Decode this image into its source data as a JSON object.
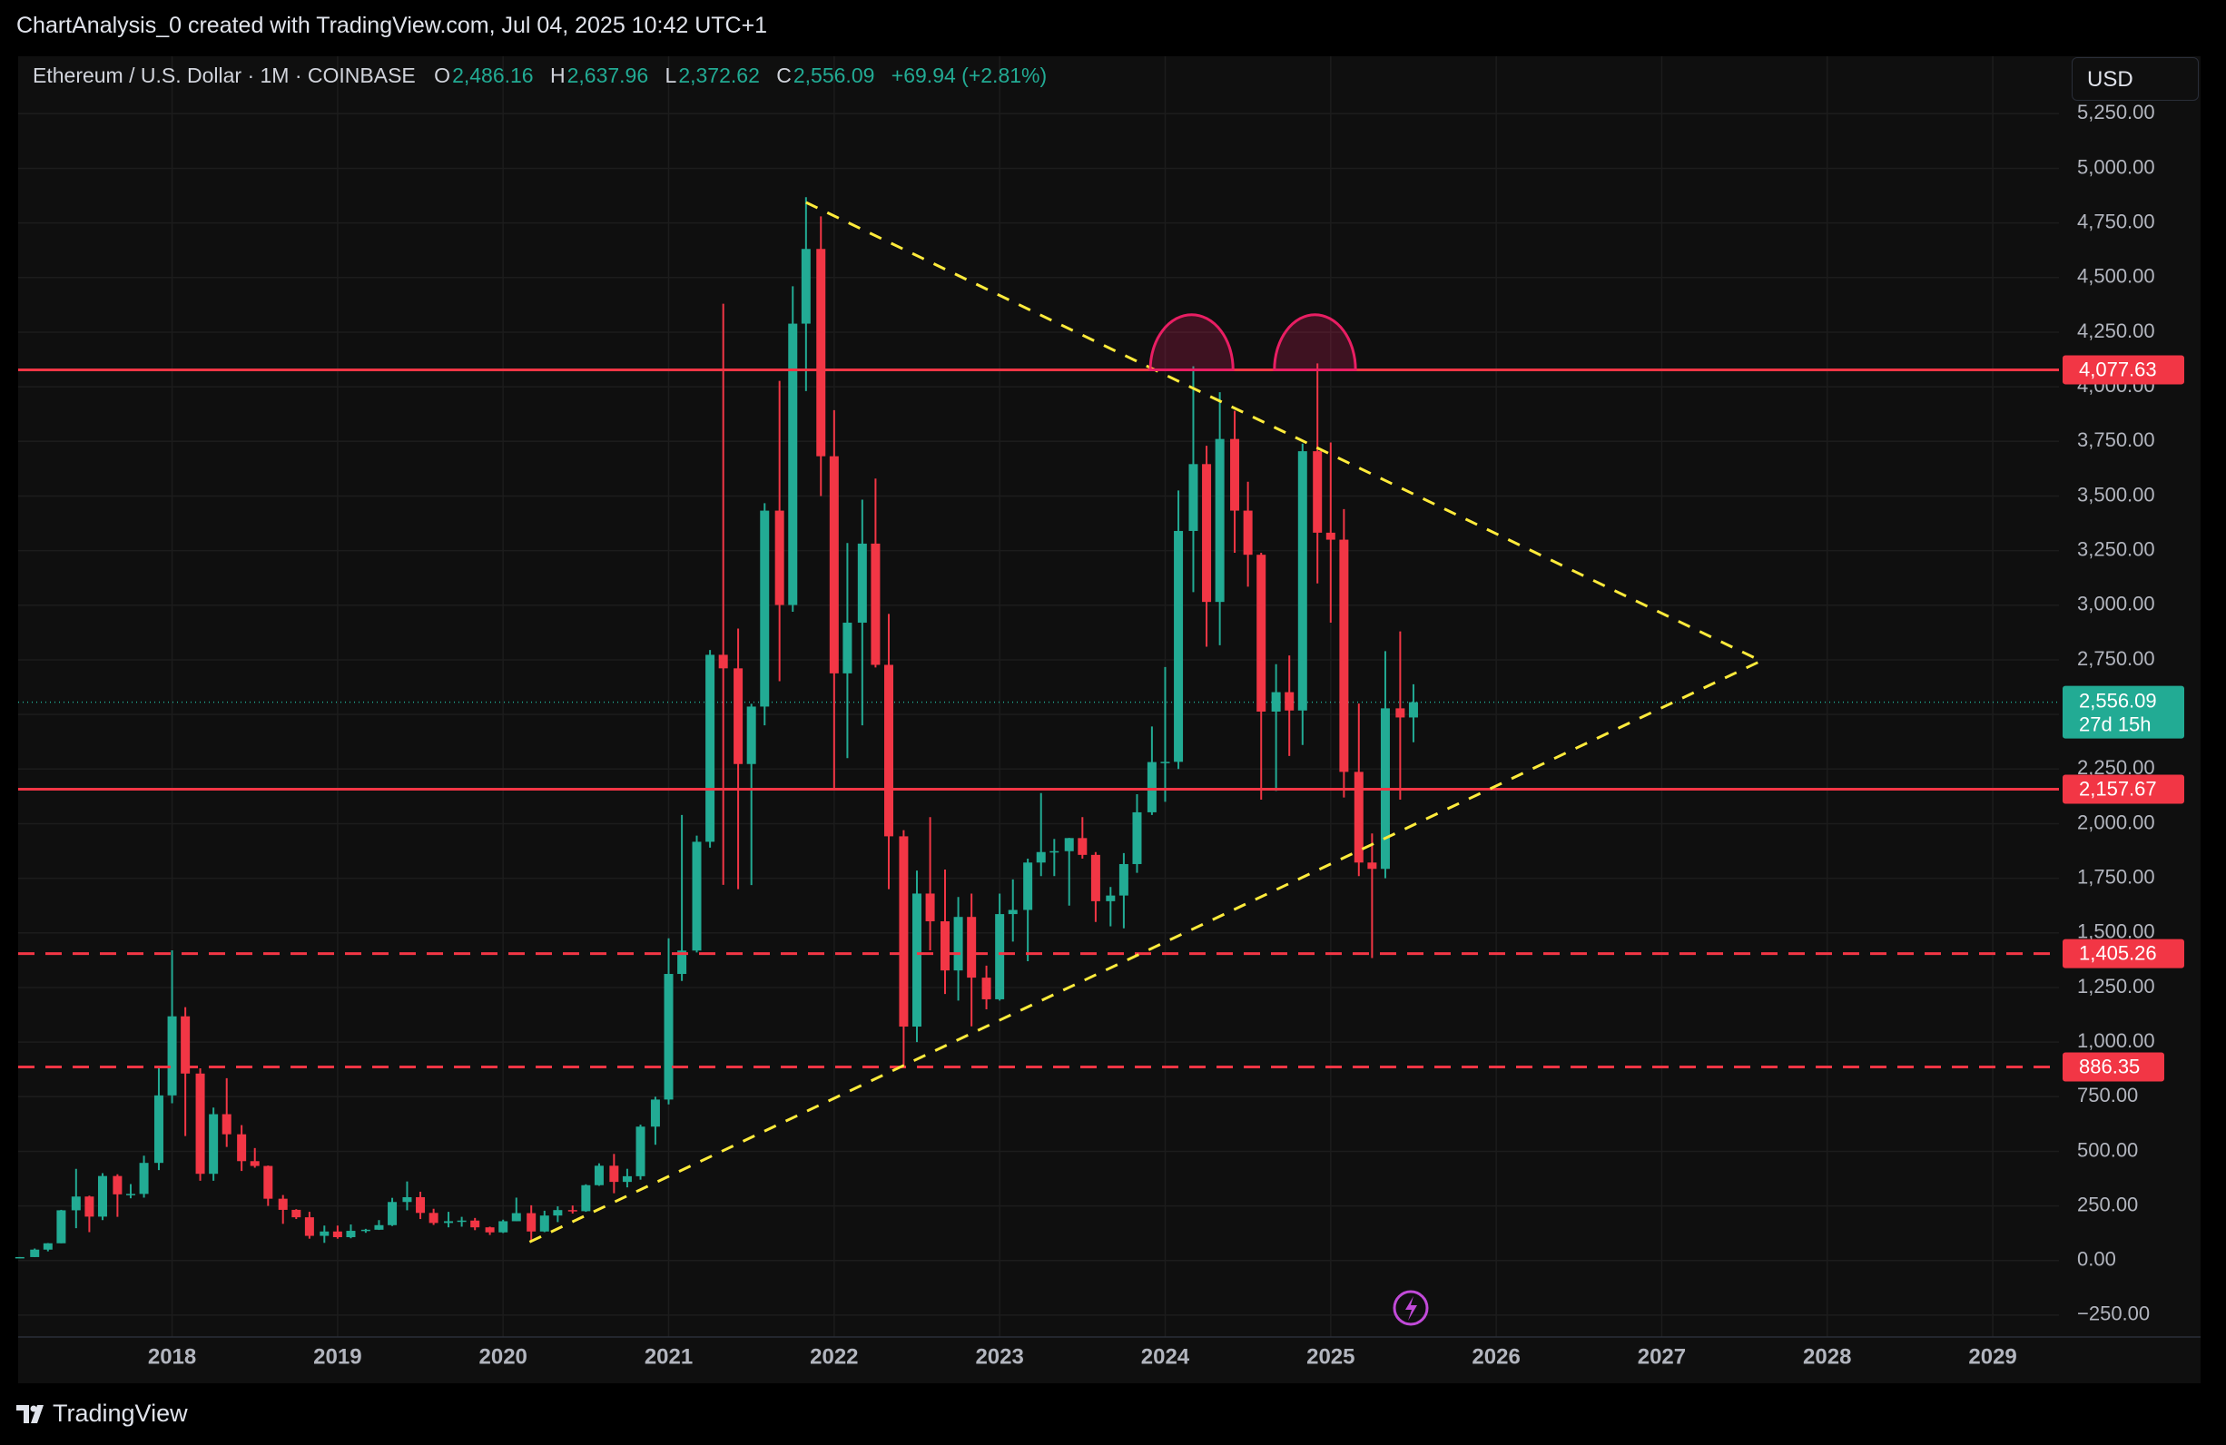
{
  "page": {
    "attribution": "ChartAnalysis_0 created with TradingView.com, Jul 04, 2025 10:42 UTC+1",
    "symbol": "Ethereum / U.S. Dollar · 1M · COINBASE",
    "ohlc": [
      [
        "O",
        "2,486.16"
      ],
      [
        "H",
        "2,637.96"
      ],
      [
        "L",
        "2,372.62"
      ],
      [
        "C",
        "2,556.09"
      ]
    ],
    "change": "+69.94 (+2.81%)",
    "currency": "USD",
    "brand": "TradingView"
  },
  "chart_data": {
    "type": "candlestick",
    "up_color": "#22ab94",
    "down_color": "#f23645",
    "x": [
      2017.08,
      2017.17,
      2017.25,
      2017.33,
      2017.42,
      2017.5,
      2017.58,
      2017.67,
      2017.75,
      2017.83,
      2017.92,
      2018,
      2018.08,
      2018.17,
      2018.25,
      2018.33,
      2018.42,
      2018.5,
      2018.58,
      2018.67,
      2018.75,
      2018.83,
      2018.92,
      2019,
      2019.08,
      2019.17,
      2019.25,
      2019.33,
      2019.42,
      2019.5,
      2019.58,
      2019.67,
      2019.75,
      2019.83,
      2019.92,
      2020,
      2020.08,
      2020.17,
      2020.25,
      2020.33,
      2020.42,
      2020.5,
      2020.58,
      2020.67,
      2020.75,
      2020.83,
      2020.92,
      2021,
      2021.08,
      2021.17,
      2021.25,
      2021.33,
      2021.42,
      2021.5,
      2021.58,
      2021.67,
      2021.75,
      2021.83,
      2021.92,
      2022,
      2022.08,
      2022.17,
      2022.25,
      2022.33,
      2022.42,
      2022.5,
      2022.58,
      2022.67,
      2022.75,
      2022.83,
      2022.92,
      2023,
      2023.08,
      2023.17,
      2023.25,
      2023.33,
      2023.42,
      2023.5,
      2023.58,
      2023.67,
      2023.75,
      2023.83,
      2023.92,
      2024,
      2024.08,
      2024.17,
      2024.25,
      2024.33,
      2024.42,
      2024.5,
      2024.58,
      2024.67,
      2024.75,
      2024.83,
      2024.92,
      2025,
      2025.08,
      2025.17,
      2025.25,
      2025.33,
      2025.42,
      2025.5
    ],
    "open": [
      10.7,
      15.9,
      50,
      79,
      230,
      293,
      201,
      387,
      303,
      305,
      447,
      756,
      1118,
      856,
      397,
      670,
      578,
      455,
      433,
      283,
      232,
      198,
      113,
      133,
      107,
      136,
      141,
      162,
      268,
      290,
      218,
      172,
      180,
      183,
      152,
      129,
      180,
      217,
      133,
      206,
      231,
      226,
      345,
      434,
      360,
      386,
      613,
      737,
      1312,
      1419,
      1917,
      2773,
      2711,
      2273,
      2536,
      3433,
      3001,
      4289,
      4631,
      3682,
      2688,
      2920,
      3282,
      2727,
      1942,
      1071,
      1680,
      1553,
      1328,
      1573,
      1295,
      1196,
      1586,
      1605,
      1822,
      1870,
      1874,
      1934,
      1857,
      1645,
      1671,
      1815,
      2052,
      2282,
      2283,
      3340,
      3646,
      3015,
      3761,
      3433,
      3231,
      2513,
      2602,
      2518,
      3705,
      3332,
      3300,
      2237,
      1822,
      1793,
      2528,
      2486.16
    ],
    "high": [
      16,
      55,
      80,
      232,
      420,
      297,
      400,
      395,
      350,
      480,
      880,
      1420,
      1160,
      880,
      700,
      835,
      620,
      515,
      435,
      300,
      235,
      223,
      160,
      160,
      165,
      145,
      185,
      287,
      362,
      315,
      237,
      223,
      200,
      195,
      155,
      187,
      288,
      253,
      228,
      248,
      252,
      349,
      445,
      488,
      420,
      622,
      750,
      1475,
      2040,
      1945,
      2795,
      4380,
      2893,
      2549,
      3467,
      4027,
      4460,
      4868,
      4780,
      3893,
      3285,
      3483,
      3580,
      2960,
      1970,
      1785,
      2030,
      1790,
      1664,
      1680,
      1350,
      1680,
      1745,
      1840,
      2140,
      1930,
      1935,
      2030,
      1870,
      1710,
      1865,
      2135,
      2445,
      2717,
      3525,
      4094,
      3730,
      3975,
      3890,
      3565,
      3240,
      2730,
      2770,
      3740,
      4107,
      3745,
      3440,
      2550,
      1955,
      2790,
      2880,
      2637.96
    ],
    "low": [
      10.5,
      15.5,
      42,
      79,
      148,
      130,
      185,
      200,
      285,
      288,
      414,
      720,
      570,
      365,
      365,
      520,
      410,
      425,
      250,
      168,
      190,
      100,
      81,
      100,
      102,
      127,
      140,
      158,
      230,
      190,
      163,
      152,
      155,
      139,
      117,
      126,
      180,
      90,
      130,
      176,
      215,
      223,
      342,
      308,
      335,
      370,
      530,
      715,
      1280,
      1410,
      1890,
      1720,
      1700,
      1719,
      2450,
      2652,
      2970,
      3980,
      3500,
      2160,
      2300,
      2450,
      2715,
      1700,
      880,
      1000,
      1420,
      1220,
      1190,
      1072,
      1150,
      1190,
      1460,
      1370,
      1760,
      1760,
      1625,
      1840,
      1550,
      1530,
      1521,
      1775,
      2040,
      2100,
      2250,
      3060,
      2810,
      2817,
      3240,
      3085,
      2110,
      2150,
      2310,
      2360,
      3100,
      2920,
      2120,
      1760,
      1385,
      1750,
      2110,
      2372.62
    ],
    "close": [
      15.9,
      50,
      79,
      230,
      293,
      201,
      387,
      303,
      305,
      447,
      756,
      1118,
      856,
      397,
      670,
      578,
      455,
      433,
      283,
      232,
      198,
      113,
      133,
      107,
      136,
      141,
      162,
      268,
      290,
      218,
      172,
      180,
      183,
      152,
      129,
      180,
      217,
      133,
      206,
      231,
      226,
      345,
      434,
      360,
      386,
      613,
      737,
      1312,
      1419,
      1917,
      2773,
      2711,
      2273,
      2536,
      3433,
      3001,
      4289,
      4631,
      3682,
      2688,
      2920,
      3282,
      2727,
      1942,
      1071,
      1680,
      1553,
      1328,
      1573,
      1295,
      1196,
      1586,
      1605,
      1822,
      1870,
      1874,
      1934,
      1857,
      1645,
      1671,
      1815,
      2052,
      2282,
      2283,
      3340,
      3646,
      3015,
      3761,
      3433,
      3231,
      2513,
      2602,
      2518,
      3705,
      3332,
      3300,
      2237,
      1822,
      1793,
      2528,
      2486.16,
      2556.09
    ],
    "xlim": [
      2017.07,
      2029.4
    ],
    "xticks": [
      2018,
      2019,
      2020,
      2021,
      2022,
      2023,
      2024,
      2025,
      2026,
      2027,
      2028,
      2029
    ],
    "ylim": [
      -350,
      5513
    ],
    "yticks": [
      {
        "value": -250,
        "label": "−250.00"
      },
      {
        "value": 0,
        "label": "0.00"
      },
      {
        "value": 250,
        "label": "250.00"
      },
      {
        "value": 500,
        "label": "500.00"
      },
      {
        "value": 750,
        "label": "750.00"
      },
      {
        "value": 1000,
        "label": "1,000.00"
      },
      {
        "value": 1250,
        "label": "1,250.00"
      },
      {
        "value": 1500,
        "label": "1,500.00"
      },
      {
        "value": 1750,
        "label": "1,750.00"
      },
      {
        "value": 2000,
        "label": "2,000.00"
      },
      {
        "value": 2250,
        "label": "2,250.00"
      },
      {
        "value": 2500,
        "label": "2,500.00"
      },
      {
        "value": 2750,
        "label": "2,750.00"
      },
      {
        "value": 3000,
        "label": "3,000.00"
      },
      {
        "value": 3250,
        "label": "3,250.00"
      },
      {
        "value": 3500,
        "label": "3,500.00"
      },
      {
        "value": 3750,
        "label": "3,750.00"
      },
      {
        "value": 4000,
        "label": "4,000.00"
      },
      {
        "value": 4250,
        "label": "4,250.00"
      },
      {
        "value": 4500,
        "label": "4,500.00"
      },
      {
        "value": 4750,
        "label": "4,750.00"
      },
      {
        "value": 5000,
        "label": "5,000.00"
      },
      {
        "value": 5250,
        "label": "5,250.00"
      }
    ],
    "grid": true,
    "levels": [
      {
        "value": 4077.63,
        "label": "4,077.63",
        "style": "solid"
      },
      {
        "value": 2157.67,
        "label": "2,157.67",
        "style": "solid"
      },
      {
        "value": 1405.26,
        "label": "1,405.26",
        "style": "dashed"
      },
      {
        "value": 886.35,
        "label": "886.35",
        "style": "dashed"
      }
    ],
    "level_color": "#f23645",
    "last_price": {
      "value": 2556.09,
      "label": "2,556.09",
      "countdown": "27d 15h"
    },
    "trendlines": [
      {
        "x": [
          2021.83,
          2027.6
        ],
        "y": [
          4844,
          2745
        ],
        "color": "#ffeb3b"
      },
      {
        "x": [
          2020.16,
          2027.6
        ],
        "y": [
          85,
          2745
        ],
        "color": "#ffeb3b"
      }
    ],
    "arcs": [
      {
        "x": [
          2023.91,
          2024.41
        ],
        "y": [
          4077.63,
          4330
        ],
        "color": "#e91e63"
      },
      {
        "x": [
          2024.66,
          2025.15
        ],
        "y": [
          4077.63,
          4330
        ],
        "color": "#e91e63"
      }
    ]
  }
}
